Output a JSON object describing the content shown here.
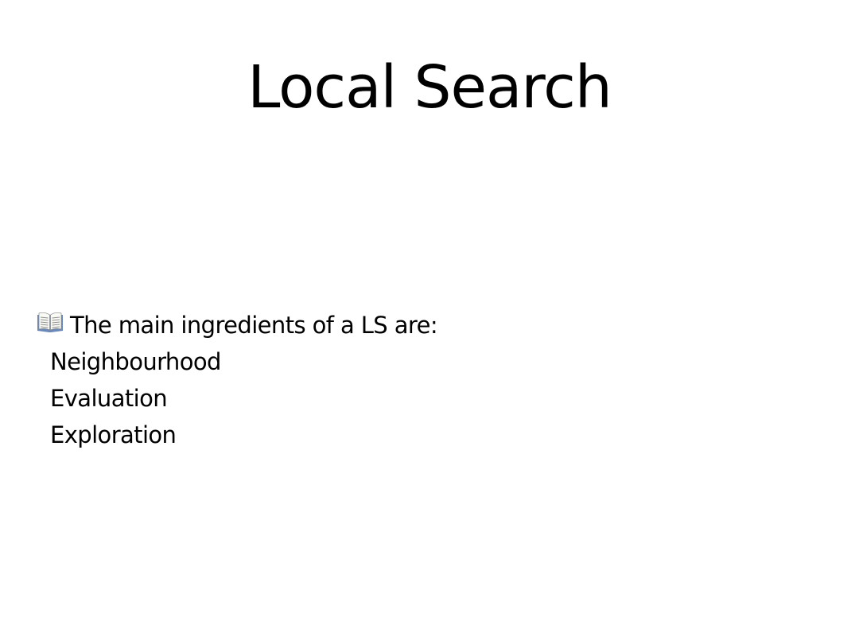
{
  "slide": {
    "title": "Local Search",
    "lead_icon": "open-book-icon",
    "lead_text": "The main ingredients of a LS are:",
    "items": [
      {
        "label": "Neighbourhood"
      },
      {
        "label": "Evaluation"
      },
      {
        "label": "Exploration"
      }
    ]
  }
}
